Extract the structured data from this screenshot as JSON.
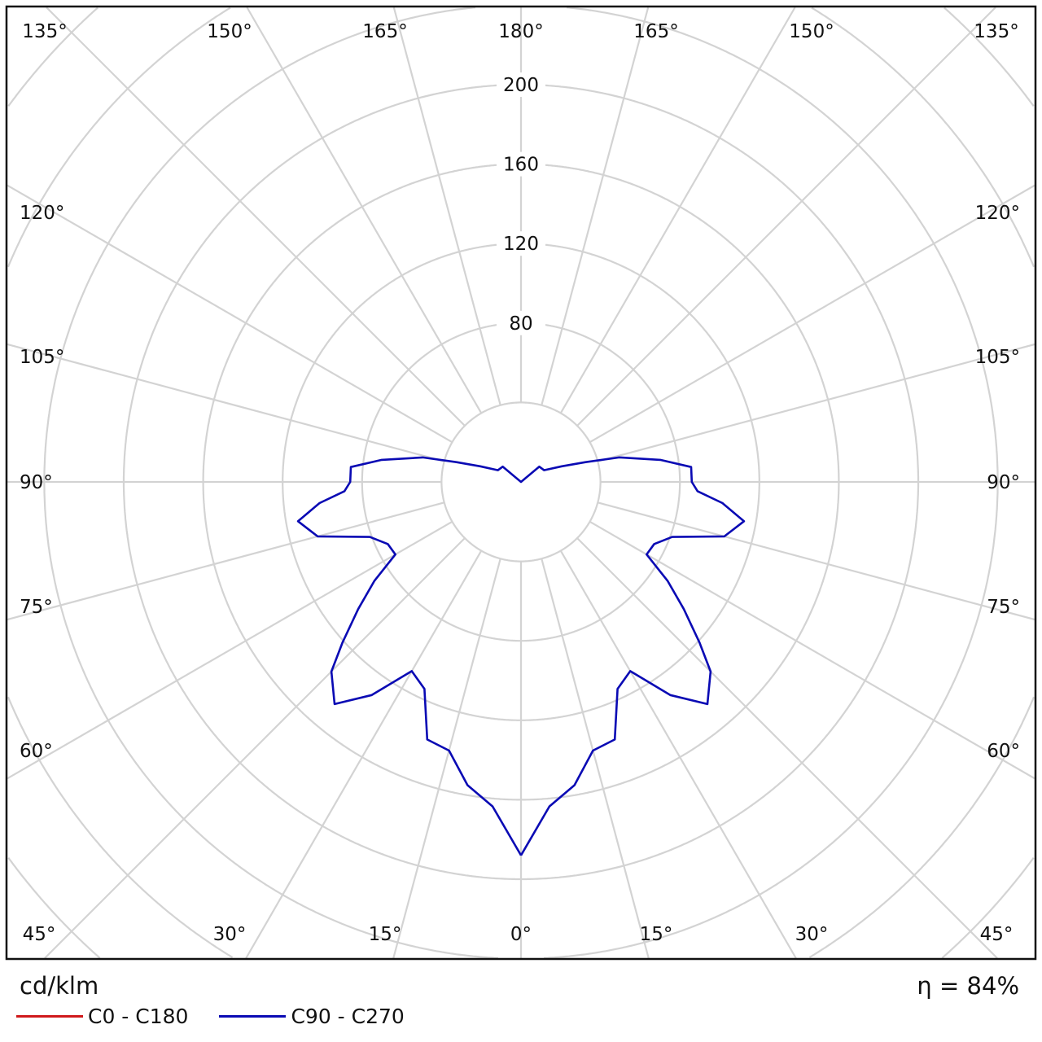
{
  "chart_data": {
    "type": "polar",
    "unit_label": "cd/klm",
    "efficiency_label": "η = 84%",
    "radial_ticks": [
      80,
      120,
      160,
      200
    ],
    "radial_rings": [
      40,
      80,
      120,
      160,
      200,
      240,
      280,
      320
    ],
    "angle_step_deg": 15,
    "angle_labels": {
      "top": [
        "135°",
        "150°",
        "165°",
        "180°",
        "165°",
        "150°",
        "135°"
      ],
      "left": [
        "120°",
        "105°",
        "90°",
        "75°",
        "60°"
      ],
      "right": [
        "120°",
        "105°",
        "90°",
        "75°",
        "60°"
      ],
      "bottom": [
        "45°",
        "30°",
        "15°",
        "0°",
        "15°",
        "30°",
        "45°"
      ]
    },
    "grid": true,
    "series": [
      {
        "name": "C0 - C180",
        "color": "#d0191b",
        "points": []
      },
      {
        "name": "C90 - C270",
        "color": "#0a0ab4",
        "symmetric": true,
        "points": [
          [
            0,
            188
          ],
          [
            5,
            164
          ],
          [
            10,
            155
          ],
          [
            15,
            140
          ],
          [
            20,
            138
          ],
          [
            25,
            115
          ],
          [
            30,
            110
          ],
          [
            35,
            131
          ],
          [
            40,
            146
          ],
          [
            45,
            135
          ],
          [
            48,
            121
          ],
          [
            52,
            104
          ],
          [
            56,
            89
          ],
          [
            60,
            73
          ],
          [
            65,
            74
          ],
          [
            70,
            81
          ],
          [
            75,
            106
          ],
          [
            80,
            114
          ],
          [
            84,
            102
          ],
          [
            87,
            89
          ],
          [
            90,
            86
          ],
          [
            95,
            86
          ],
          [
            99,
            71
          ],
          [
            104,
            51
          ],
          [
            107,
            34
          ],
          [
            111,
            22
          ],
          [
            117,
            13
          ],
          [
            130,
            12
          ],
          [
            180,
            0
          ]
        ]
      }
    ]
  }
}
